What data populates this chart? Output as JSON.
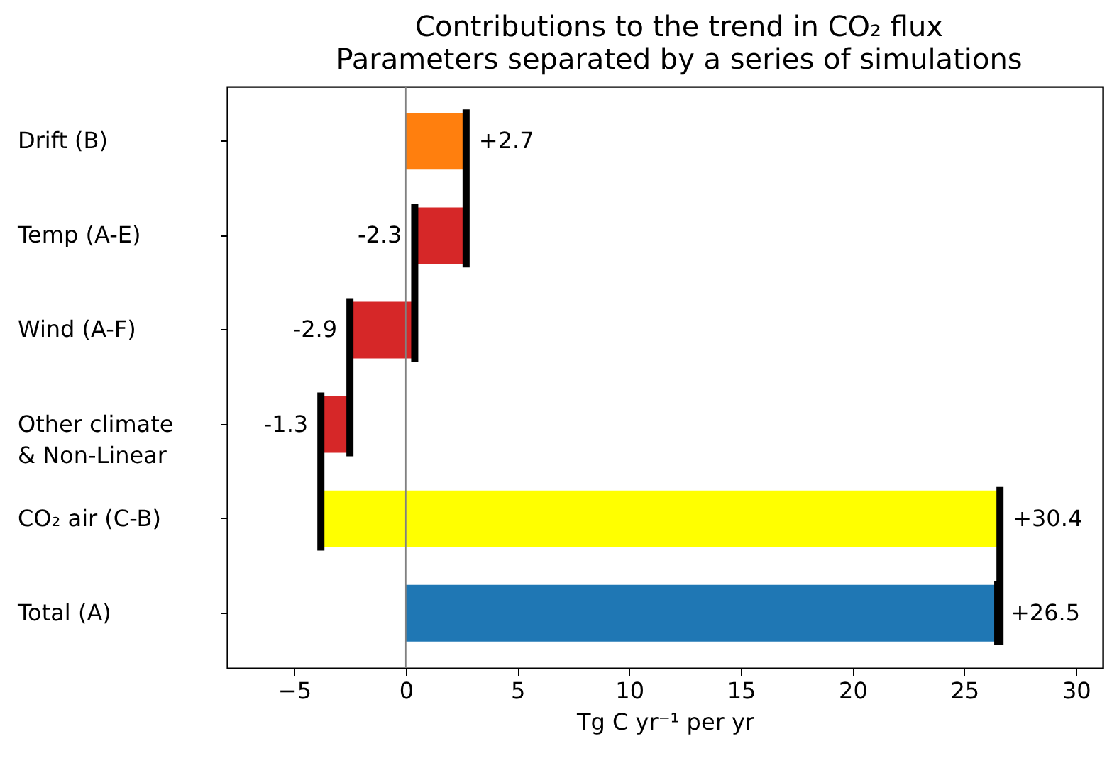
{
  "chart_data": {
    "type": "bar",
    "orientation": "horizontal",
    "title": "Contributions to the trend in CO₂ flux",
    "subtitle": "Parameters separated by a series of simulations",
    "categories": [
      "Drift (B)",
      "Temp (A-E)",
      "Wind (A-F)",
      "Other climate\n& Non-Linear",
      "CO₂ air (C-B)",
      "Total (A)"
    ],
    "values": [
      2.7,
      -2.3,
      -2.9,
      -1.3,
      30.4,
      26.5
    ],
    "base": [
      0,
      2.7,
      0.4,
      -2.5,
      -3.8,
      0
    ],
    "colors": [
      "#ff7f0e",
      "#d62728",
      "#d62728",
      "#d62728",
      "#ffff00",
      "#1f77b4"
    ],
    "value_labels": [
      "+2.7",
      "-2.3",
      "-2.9",
      "-1.3",
      "+30.4",
      "+26.5"
    ],
    "xlabel": "Tg C yr⁻¹ per yr",
    "xlim": [
      -8,
      31.2
    ],
    "xticks": [
      -5,
      0,
      5,
      10,
      15,
      20,
      25,
      30
    ],
    "ref_lines": [
      {
        "axis": "x",
        "value": 0,
        "color": "#808080"
      }
    ],
    "grid": false
  }
}
